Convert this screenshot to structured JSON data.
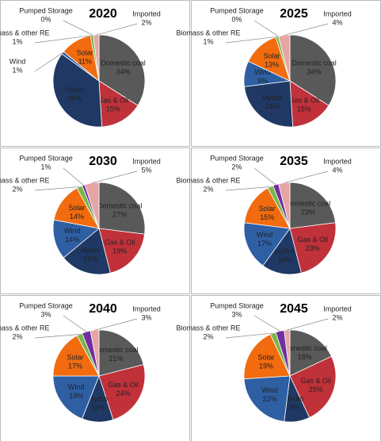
{
  "chart_data": [
    {
      "type": "pie",
      "title": "2020",
      "categories": [
        "Domestic coal",
        "Gas & Oil",
        "Hydro",
        "Wind",
        "Solar",
        "Biomass & other RE",
        "Pumped Storage",
        "Imported"
      ],
      "values": [
        34,
        15,
        36,
        1,
        11,
        1,
        0,
        2
      ],
      "value_labels": [
        "34%",
        "15%",
        "36%",
        "1%",
        "11%",
        "1%",
        "0%",
        "2%"
      ],
      "colors": [
        "#595959",
        "#c0313a",
        "#1f3864",
        "#2e5fa3",
        "#f26b0f",
        "#7ab648",
        "#7030a0",
        "#e6a5a5"
      ]
    },
    {
      "type": "pie",
      "title": "2025",
      "categories": [
        "Domestic coal",
        "Gas & Oil",
        "Hydro",
        "Wind",
        "Solar",
        "Biomass & other RE",
        "Pumped Storage",
        "Imported"
      ],
      "values": [
        34,
        15,
        24,
        9,
        13,
        1,
        0,
        4
      ],
      "value_labels": [
        "34%",
        "15%",
        "24%",
        "9%",
        "13%",
        "1%",
        "0%",
        "4%"
      ],
      "colors": [
        "#595959",
        "#c0313a",
        "#1f3864",
        "#2e5fa3",
        "#f26b0f",
        "#7ab648",
        "#7030a0",
        "#e6a5a5"
      ]
    },
    {
      "type": "pie",
      "title": "2030",
      "categories": [
        "Domestic coal",
        "Gas & Oil",
        "Hydro",
        "Wind",
        "Solar",
        "Biomass & other RE",
        "Pumped Storage",
        "Imported"
      ],
      "values": [
        27,
        19,
        18,
        14,
        14,
        2,
        1,
        5
      ],
      "value_labels": [
        "27%",
        "19%",
        "18%",
        "14%",
        "14%",
        "2%",
        "1%",
        "5%"
      ],
      "colors": [
        "#595959",
        "#c0313a",
        "#1f3864",
        "#2e5fa3",
        "#f26b0f",
        "#7ab648",
        "#7030a0",
        "#e6a5a5"
      ]
    },
    {
      "type": "pie",
      "title": "2035",
      "categories": [
        "Domestic coal",
        "Gas & Oil",
        "Hydro",
        "Wind",
        "Solar",
        "Biomass & other RE",
        "Pumped Storage",
        "Imported"
      ],
      "values": [
        23,
        23,
        14,
        17,
        15,
        2,
        2,
        4
      ],
      "value_labels": [
        "23%",
        "23%",
        "14%",
        "17%",
        "15%",
        "2%",
        "2%",
        "4%"
      ],
      "colors": [
        "#595959",
        "#c0313a",
        "#1f3864",
        "#2e5fa3",
        "#f26b0f",
        "#7ab648",
        "#7030a0",
        "#e6a5a5"
      ]
    },
    {
      "type": "pie",
      "title": "2040",
      "categories": [
        "Domestic coal",
        "Gas & Oil",
        "Hydro",
        "Wind",
        "Solar",
        "Biomass & other RE",
        "Pumped Storage",
        "Imported"
      ],
      "values": [
        21,
        24,
        11,
        19,
        17,
        2,
        3,
        3
      ],
      "value_labels": [
        "21%",
        "24%",
        "11%",
        "19%",
        "17%",
        "2%",
        "3%",
        "3%"
      ],
      "colors": [
        "#595959",
        "#c0313a",
        "#1f3864",
        "#2e5fa3",
        "#f26b0f",
        "#7ab648",
        "#7030a0",
        "#e6a5a5"
      ]
    },
    {
      "type": "pie",
      "title": "2045",
      "categories": [
        "Domestic coal",
        "Gas & Oil",
        "Hydro",
        "Wind",
        "Solar",
        "Biomass & other RE",
        "Pumped Storage",
        "Imported"
      ],
      "values": [
        18,
        25,
        9,
        22,
        19,
        2,
        3,
        2
      ],
      "value_labels": [
        "18%",
        "25%",
        "9%",
        "22%",
        "19%",
        "2%",
        "3%",
        "2%"
      ],
      "colors": [
        "#595959",
        "#c0313a",
        "#1f3864",
        "#2e5fa3",
        "#f26b0f",
        "#7ab648",
        "#7030a0",
        "#e6a5a5"
      ]
    }
  ]
}
